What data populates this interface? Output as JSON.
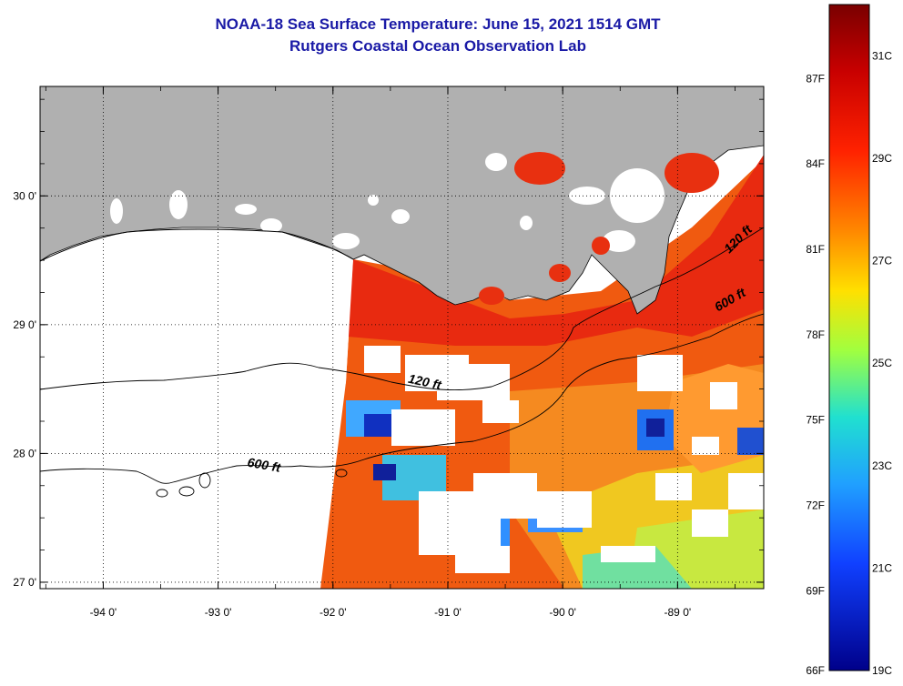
{
  "title": {
    "line1": "NOAA-18 Sea Surface Temperature:  June 15, 2021 1514 GMT",
    "line2": "Rutgers Coastal Ocean Observation Lab"
  },
  "map": {
    "lon_range": [
      -94.55,
      -88.25
    ],
    "lat_range": [
      26.95,
      30.85
    ],
    "lon_ticks": [
      {
        "value": -94,
        "label": "-94 0'"
      },
      {
        "value": -93,
        "label": "-93 0'"
      },
      {
        "value": -92,
        "label": "-92 0'"
      },
      {
        "value": -91,
        "label": "-91 0'"
      },
      {
        "value": -90,
        "label": "-90 0'"
      },
      {
        "value": -89,
        "label": "-89 0'"
      }
    ],
    "lat_ticks": [
      {
        "value": 30,
        "label": "30 0'"
      },
      {
        "value": 29,
        "label": "29 0'"
      },
      {
        "value": 28,
        "label": "28 0'"
      },
      {
        "value": 27,
        "label": "27 0'"
      }
    ],
    "contour_labels": [
      {
        "text": "120 ft",
        "lon": -91.35,
        "lat": 28.55
      },
      {
        "text": "600 ft",
        "lon": -92.75,
        "lat": 27.9
      },
      {
        "text": "120 ft",
        "lon": -88.55,
        "lat": 29.55
      },
      {
        "text": "600 ft",
        "lon": -88.65,
        "lat": 29.1
      }
    ],
    "colors": {
      "land": "#b0b0b0",
      "cloud": "#ffffff"
    }
  },
  "colorbar": {
    "min_c": 19,
    "max_c": 32,
    "celsius_labels": [
      {
        "value": 31,
        "label": "31C"
      },
      {
        "value": 29,
        "label": "29C"
      },
      {
        "value": 27,
        "label": "27C"
      },
      {
        "value": 25,
        "label": "25C"
      },
      {
        "value": 23,
        "label": "23C"
      },
      {
        "value": 21,
        "label": "21C"
      },
      {
        "value": 19,
        "label": "19C"
      }
    ],
    "fahrenheit_labels": [
      {
        "value": 87,
        "label": "87F"
      },
      {
        "value": 84,
        "label": "84F"
      },
      {
        "value": 81,
        "label": "81F"
      },
      {
        "value": 78,
        "label": "78F"
      },
      {
        "value": 75,
        "label": "75F"
      },
      {
        "value": 72,
        "label": "72F"
      },
      {
        "value": 69,
        "label": "69F"
      },
      {
        "value": 66,
        "label": "66F"
      }
    ]
  }
}
